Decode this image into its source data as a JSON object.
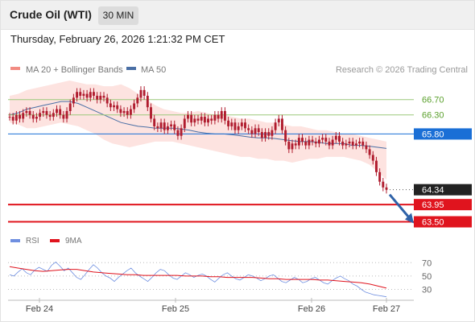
{
  "header": {
    "title": "Crude Oil (WTI)",
    "timeframe": "30 MIN"
  },
  "datetime": "Thursday, February 26, 2026 1:21:32 PM CET",
  "legend": {
    "bollinger_label": "MA 20 + Bollinger Bands",
    "ma50_label": "MA 50",
    "copyright": "Research © 2026 Trading Central",
    "rsi_label": "RSI",
    "rsi_ma_label": "9MA"
  },
  "colors": {
    "bollinger": "#f28b82",
    "bollinger_fill": "#fde3e0",
    "ma50": "#4a6fa5",
    "candle": "#b01c2e",
    "resistance_soft": "#9cc97a",
    "pivot": "#1a6fd6",
    "support": "#e0141e",
    "last_price_box": "#222222",
    "rsi": "#6f8fe0",
    "rsi_ma": "#e0141e"
  },
  "chart_data": [
    {
      "type": "candlestick",
      "title": "Crude Oil (WTI)",
      "timeframe": "30 MIN",
      "x_tick_labels": [
        "Feb 24",
        "Feb 25",
        "Feb 26",
        "Feb 27"
      ],
      "ylim": [
        63.3,
        67.2
      ],
      "levels": [
        {
          "label": "66.70",
          "value": 66.7,
          "kind": "resistance"
        },
        {
          "label": "66.30",
          "value": 66.3,
          "kind": "resistance"
        },
        {
          "label": "65.80",
          "value": 65.8,
          "kind": "pivot"
        },
        {
          "label": "64.34",
          "value": 64.34,
          "kind": "last"
        },
        {
          "label": "63.95",
          "value": 63.95,
          "kind": "support"
        },
        {
          "label": "63.50",
          "value": 63.5,
          "kind": "support"
        }
      ],
      "candles_close": [
        66.25,
        66.15,
        66.3,
        66.2,
        66.35,
        66.4,
        66.3,
        66.2,
        66.25,
        66.35,
        66.4,
        66.3,
        66.25,
        66.35,
        66.45,
        66.3,
        66.2,
        66.4,
        66.6,
        66.75,
        66.9,
        66.8,
        66.85,
        66.75,
        66.9,
        66.8,
        66.7,
        66.8,
        66.75,
        66.6,
        66.5,
        66.55,
        66.45,
        66.35,
        66.4,
        66.3,
        66.45,
        66.6,
        66.75,
        66.95,
        66.8,
        66.5,
        66.2,
        66.0,
        65.95,
        66.1,
        65.9,
        66.0,
        66.05,
        65.9,
        65.75,
        65.95,
        66.2,
        66.3,
        66.1,
        66.2,
        66.15,
        66.25,
        66.1,
        66.2,
        66.15,
        66.3,
        66.2,
        66.4,
        66.15,
        66.0,
        66.1,
        65.9,
        66.0,
        66.1,
        65.95,
        65.9,
        65.8,
        65.95,
        65.85,
        65.7,
        65.85,
        65.75,
        65.9,
        66.1,
        66.2,
        65.9,
        65.6,
        65.4,
        65.55,
        65.5,
        65.7,
        65.6,
        65.5,
        65.65,
        65.6,
        65.55,
        65.65,
        65.7,
        65.6,
        65.5,
        65.65,
        65.75,
        65.6,
        65.5,
        65.55,
        65.6,
        65.5,
        65.55,
        65.6,
        65.5,
        65.4,
        65.25,
        65.1,
        64.8,
        64.55,
        64.4,
        64.34
      ],
      "bollinger_upper": [
        66.8,
        66.85,
        66.95,
        67.0,
        67.05,
        67.1,
        67.15,
        67.2,
        67.15,
        67.1,
        67.1,
        67.05,
        67.05,
        67.1,
        67.0,
        66.85,
        66.7,
        66.55,
        66.45,
        66.4,
        66.35,
        66.35,
        66.4,
        66.35,
        66.3,
        66.3,
        66.25,
        66.2,
        66.2,
        66.15,
        66.1,
        66.1,
        66.05,
        66.0,
        66.0,
        65.95,
        65.9,
        65.9,
        65.85,
        65.8,
        65.8,
        65.75,
        65.7,
        65.65,
        65.6
      ],
      "bollinger_lower": [
        66.1,
        66.05,
        65.95,
        65.95,
        66.0,
        66.05,
        66.1,
        66.05,
        66.0,
        65.9,
        65.8,
        65.65,
        65.55,
        65.5,
        65.45,
        65.5,
        65.55,
        65.6,
        65.6,
        65.6,
        65.55,
        65.5,
        65.45,
        65.4,
        65.35,
        65.3,
        65.25,
        65.2,
        65.2,
        65.15,
        65.15,
        65.1,
        65.1,
        65.05,
        65.1,
        65.15,
        65.15,
        65.2,
        65.2,
        65.2,
        65.15,
        65.1,
        65.0,
        64.8,
        64.6
      ],
      "ma50": [
        66.3,
        66.35,
        66.45,
        66.5,
        66.55,
        66.6,
        66.65,
        66.65,
        66.6,
        66.5,
        66.4,
        66.3,
        66.2,
        66.1,
        66.05,
        66.0,
        65.98,
        65.95,
        65.95,
        65.95,
        65.93,
        65.9,
        65.85,
        65.82,
        65.8,
        65.8,
        65.78,
        65.75,
        65.72,
        65.7,
        65.7,
        65.68,
        65.65,
        65.62,
        65.6,
        65.6,
        65.58,
        65.55,
        65.55,
        65.55,
        65.5,
        65.5,
        65.48,
        65.45,
        65.42
      ]
    },
    {
      "type": "line",
      "title": "RSI",
      "ylim": [
        15,
        80
      ],
      "y_tick_labels": [
        "70",
        "50",
        "30"
      ],
      "series": [
        {
          "name": "RSI",
          "values": [
            52,
            50,
            56,
            61,
            55,
            52,
            59,
            63,
            60,
            57,
            66,
            71,
            65,
            58,
            62,
            55,
            48,
            45,
            52,
            60,
            67,
            62,
            55,
            50,
            47,
            42,
            48,
            53,
            58,
            62,
            55,
            50,
            46,
            42,
            48,
            55,
            60,
            58,
            52,
            47,
            45,
            50,
            55,
            52,
            48,
            51,
            53,
            50,
            45,
            41,
            47,
            52,
            55,
            50,
            46,
            44,
            48,
            52,
            50,
            47,
            43,
            46,
            50,
            52,
            47,
            42,
            40,
            44,
            48,
            45,
            40,
            42,
            46,
            48,
            44,
            40,
            38,
            43,
            47,
            50,
            46,
            43,
            38,
            35,
            30,
            26,
            24,
            22,
            21,
            20,
            19
          ]
        },
        {
          "name": "9MA",
          "values": [
            64,
            62,
            60,
            58,
            57,
            58,
            59,
            60,
            60,
            58,
            56,
            55,
            54,
            53,
            52,
            52,
            51,
            51,
            51,
            51,
            51,
            50,
            50,
            50,
            49,
            49,
            48,
            48,
            48,
            48,
            47,
            46,
            46,
            45,
            45,
            45,
            45,
            44,
            44,
            43,
            42,
            41,
            40,
            38,
            35,
            32
          ]
        }
      ]
    }
  ]
}
